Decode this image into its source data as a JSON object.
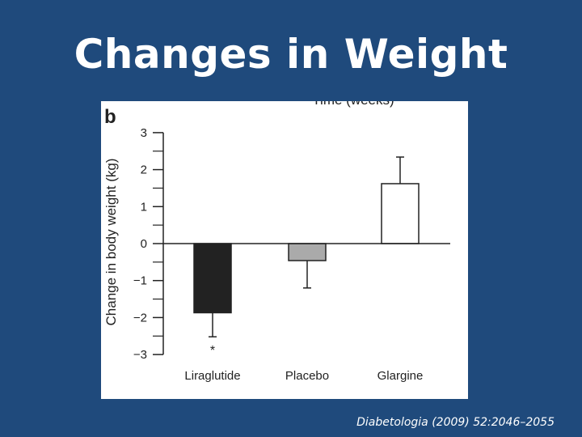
{
  "slide": {
    "title": "Changes in Weight",
    "citation": "Diabetologia (2009) 52:2046–2055",
    "background_color": "#1f4a7c"
  },
  "chart_data": {
    "type": "bar",
    "panel_label": "b",
    "clipped_heading": "Time (weeks)",
    "ylabel": "Change in body weight (kg)",
    "ylim": [
      -3,
      3
    ],
    "yticks": [
      {
        "value": 3,
        "label": "3"
      },
      {
        "value": 2,
        "label": "2"
      },
      {
        "value": 1,
        "label": "1"
      },
      {
        "value": 0,
        "label": "0"
      },
      {
        "value": -1,
        "label": "−1"
      },
      {
        "value": -2,
        "label": "−2"
      },
      {
        "value": -3,
        "label": "−3"
      }
    ],
    "minor_ticks": [
      2.5,
      1.5,
      0.5,
      -0.5,
      -1.5,
      -2.5
    ],
    "categories": [
      "Liraglutide",
      "Placebo",
      "Glargine"
    ],
    "values": [
      -1.87,
      -0.46,
      1.62
    ],
    "error": [
      0.65,
      0.74,
      0.72
    ],
    "colors": [
      "#222222",
      "#aaaaaa",
      "#ffffff"
    ],
    "annotations": [
      {
        "category": "Liraglutide",
        "text": "*"
      }
    ],
    "grid": false,
    "legend": "none"
  }
}
